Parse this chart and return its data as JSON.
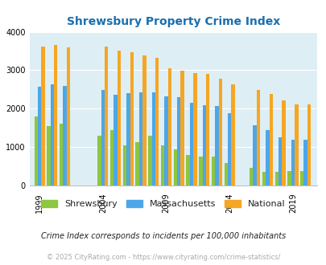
{
  "title": "Shrewsbury Property Crime Index",
  "years": [
    1999,
    2000,
    2001,
    2004,
    2005,
    2006,
    2007,
    2008,
    2009,
    2010,
    2011,
    2012,
    2013,
    2014,
    2016,
    2017,
    2018,
    2019,
    2020
  ],
  "shrewsbury": [
    1800,
    1550,
    1600,
    1300,
    1450,
    1050,
    1130,
    1300,
    1050,
    950,
    800,
    750,
    750,
    580,
    460,
    350,
    350,
    370,
    370
  ],
  "massachusetts": [
    2580,
    2640,
    2600,
    2490,
    2370,
    2400,
    2420,
    2420,
    2320,
    2300,
    2160,
    2080,
    2070,
    1880,
    1570,
    1450,
    1260,
    1200,
    1190
  ],
  "national": [
    3620,
    3660,
    3590,
    3610,
    3510,
    3460,
    3380,
    3320,
    3060,
    2980,
    2920,
    2900,
    2780,
    2640,
    2480,
    2380,
    2220,
    2120,
    2120
  ],
  "colors": {
    "shrewsbury": "#8dc63f",
    "massachusetts": "#4da6e8",
    "national": "#f5a623"
  },
  "bg_color": "#deeef5",
  "ylim": [
    0,
    4000
  ],
  "yticks": [
    0,
    1000,
    2000,
    3000,
    4000
  ],
  "xtick_years": [
    1999,
    2004,
    2009,
    2014,
    2019
  ],
  "subtitle": "Crime Index corresponds to incidents per 100,000 inhabitants",
  "footer": "© 2025 CityRating.com - https://www.cityrating.com/crime-statistics/",
  "title_color": "#1a6fad",
  "subtitle_color": "#222222",
  "footer_color": "#aaaaaa",
  "legend_labels": [
    "Shrewsbury",
    "Massachusetts",
    "National"
  ]
}
